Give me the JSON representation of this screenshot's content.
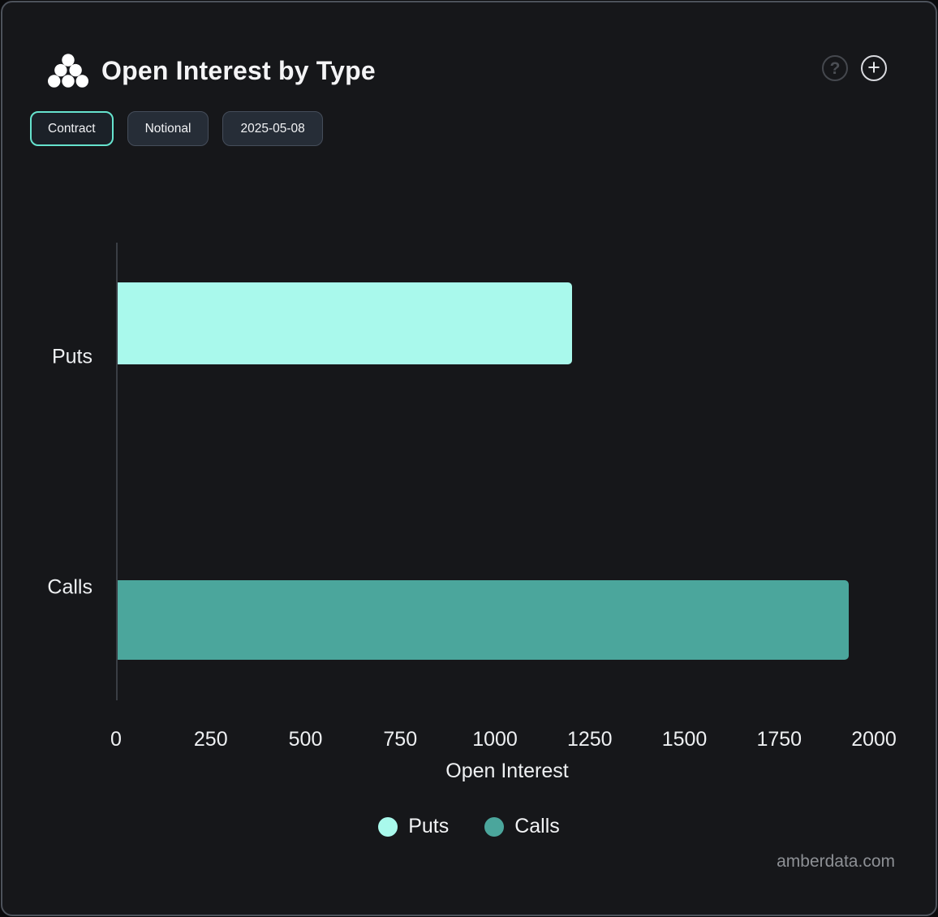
{
  "header": {
    "title": "Open Interest by Type",
    "help_icon": "?",
    "add_icon": "+"
  },
  "toolbar": {
    "buttons": [
      {
        "label": "Contract",
        "active": true
      },
      {
        "label": "Notional",
        "active": false
      },
      {
        "label": "2025-05-08",
        "active": false
      }
    ]
  },
  "chart_data": {
    "type": "bar",
    "orientation": "horizontal",
    "title": "Open Interest by Type",
    "categories": [
      "Puts",
      "Calls"
    ],
    "series": [
      {
        "name": "Puts",
        "color": "#a9f9ec",
        "values": [
          1200,
          null
        ]
      },
      {
        "name": "Calls",
        "color": "#4ba69c",
        "values": [
          null,
          1930
        ]
      }
    ],
    "xlabel": "Open Interest",
    "xticks": [
      0,
      250,
      500,
      750,
      1000,
      1250,
      1500,
      1750,
      2000
    ],
    "xlim": [
      0,
      2000
    ],
    "grid": false,
    "legend": {
      "position": "bottom",
      "entries": [
        {
          "label": "Puts",
          "color": "#a9f9ec"
        },
        {
          "label": "Calls",
          "color": "#4ba69c"
        }
      ]
    }
  },
  "colors": {
    "panel_background": "#16171a",
    "accent": "#66e3ce",
    "puts_bar": "#a9f9ec",
    "calls_bar": "#4ba69c"
  },
  "footer": {
    "watermark": "amberdata.com"
  }
}
